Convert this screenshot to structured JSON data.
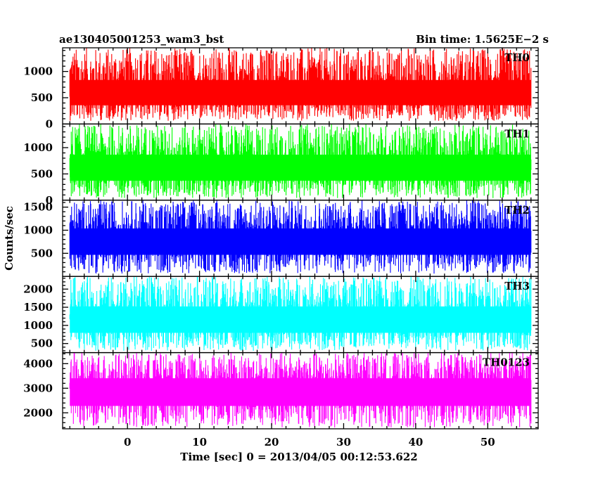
{
  "chart_data": {
    "type": "line",
    "title": "ae130405001253_wam3_bst",
    "bin_time_label": "Bin time: 1.5625E−2 s",
    "xlabel": "Time [sec] 0 = 2013/04/05 00:12:53.622",
    "ylabel": "Counts/sec",
    "xlim": [
      -9,
      57
    ],
    "x_data_range": [
      -8,
      56
    ],
    "x_ticks": [
      0,
      10,
      20,
      30,
      40,
      50
    ],
    "grid": false,
    "panels": [
      {
        "name": "TH0",
        "color": "#ff0000",
        "ylim": [
          0,
          1450
        ],
        "y_ticks": [
          0,
          500,
          1000
        ],
        "mean": 600,
        "noise_low": 60,
        "noise_high": 1450
      },
      {
        "name": "TH1",
        "color": "#00ff00",
        "ylim": [
          0,
          1450
        ],
        "y_ticks": [
          0,
          500,
          1000
        ],
        "mean": 640,
        "noise_low": 40,
        "noise_high": 1450
      },
      {
        "name": "TH2",
        "color": "#0000ff",
        "ylim": [
          0,
          1650
        ],
        "y_ticks": [
          500,
          1000,
          1500
        ],
        "mean": 800,
        "noise_low": 60,
        "noise_high": 1650
      },
      {
        "name": "TH3",
        "color": "#00ffff",
        "ylim": [
          250,
          2350
        ],
        "y_ticks": [
          500,
          1000,
          1500,
          2000
        ],
        "mean": 1200,
        "noise_low": 300,
        "noise_high": 2350
      },
      {
        "name": "TH0123",
        "color": "#ff00ff",
        "ylim": [
          1350,
          4450
        ],
        "y_ticks": [
          2000,
          3000,
          4000
        ],
        "mean": 3000,
        "noise_low": 1400,
        "noise_high": 4450
      }
    ]
  }
}
